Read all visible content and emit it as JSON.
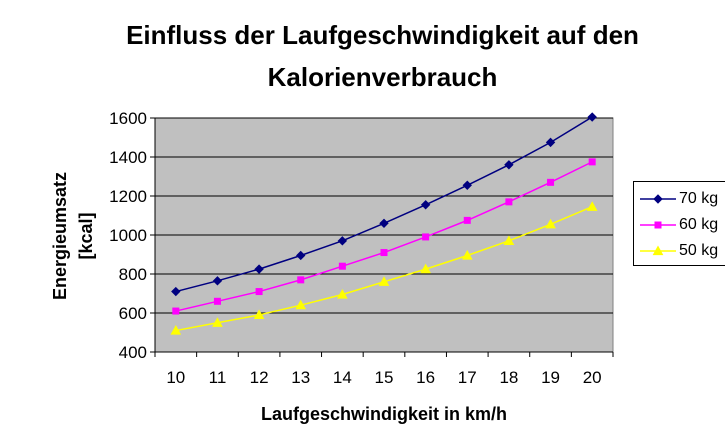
{
  "title_lines": [
    "Einfluss der Laufgeschwindigkeit auf den",
    "Kalorienverbrauch"
  ],
  "chart_data": {
    "type": "line",
    "title": "Einfluss der Laufgeschwindigkeit auf den Kalorienverbrauch",
    "xlabel": "Laufgeschwindigkeit in km/h",
    "ylabel_lines": [
      "Energieumsatz",
      "[kcal]"
    ],
    "categories": [
      "10",
      "11",
      "12",
      "13",
      "14",
      "15",
      "16",
      "17",
      "18",
      "19",
      "20"
    ],
    "ylim": [
      400,
      1600
    ],
    "yticks": [
      "400",
      "600",
      "800",
      "1000",
      "1200",
      "1400",
      "1600"
    ],
    "grid": "horizontal",
    "plot_background": "#c0c0c0",
    "legend_position": "right",
    "series": [
      {
        "name": "70 kg",
        "color": "#000080",
        "marker": "diamond",
        "values": [
          710,
          765,
          825,
          895,
          970,
          1060,
          1155,
          1255,
          1360,
          1475,
          1605
        ]
      },
      {
        "name": "60 kg",
        "color": "#ff00ff",
        "marker": "square",
        "values": [
          610,
          660,
          710,
          770,
          840,
          910,
          990,
          1075,
          1170,
          1270,
          1375
        ]
      },
      {
        "name": "50 kg",
        "color": "#ffff00",
        "marker": "triangle",
        "values": [
          510,
          550,
          590,
          640,
          695,
          760,
          825,
          895,
          970,
          1055,
          1145
        ]
      }
    ]
  }
}
